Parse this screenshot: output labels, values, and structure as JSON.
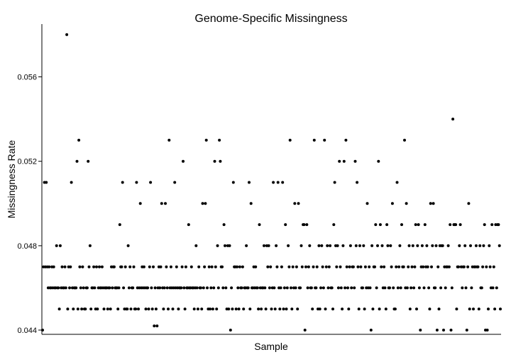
{
  "chart_data": {
    "type": "scatter",
    "title": "Genome-Specific Missingness",
    "xlabel": "Sample",
    "ylabel": "Missingness Rate",
    "xlim": [
      0,
      500
    ],
    "ylim": [
      0.0438,
      0.0585
    ],
    "yticks": [
      0.044,
      0.048,
      0.052,
      0.056
    ],
    "ytick_labels": [
      "0.044",
      "0.048",
      "0.052",
      "0.056"
    ],
    "grid": false,
    "y": [
      0.044,
      0.047,
      0.051,
      0.047,
      0.051,
      0.047,
      0.046,
      0.047,
      0.046,
      0.046,
      0.047,
      0.046,
      0.047,
      0.046,
      0.046,
      0.048,
      0.046,
      0.046,
      0.045,
      0.048,
      0.046,
      0.047,
      0.046,
      0.046,
      0.047,
      0.046,
      0.058,
      0.045,
      0.047,
      0.046,
      0.047,
      0.051,
      0.046,
      0.045,
      0.046,
      0.046,
      0.046,
      0.052,
      0.045,
      0.053,
      0.047,
      0.046,
      0.045,
      0.047,
      0.046,
      0.045,
      0.045,
      0.046,
      0.046,
      0.052,
      0.047,
      0.048,
      0.045,
      0.046,
      0.046,
      0.047,
      0.046,
      0.045,
      0.047,
      0.045,
      0.046,
      0.047,
      0.046,
      0.046,
      0.047,
      0.046,
      0.045,
      0.046,
      0.046,
      0.046,
      0.045,
      0.046,
      0.046,
      0.045,
      0.047,
      0.046,
      0.047,
      0.047,
      0.046,
      0.046,
      0.046,
      0.045,
      0.046,
      0.049,
      0.047,
      0.047,
      0.051,
      0.046,
      0.045,
      0.047,
      0.045,
      0.045,
      0.048,
      0.046,
      0.047,
      0.045,
      0.046,
      0.046,
      0.047,
      0.045,
      0.045,
      0.051,
      0.046,
      0.045,
      0.046,
      0.05,
      0.046,
      0.047,
      0.046,
      0.047,
      0.046,
      0.045,
      0.046,
      0.046,
      0.045,
      0.047,
      0.051,
      0.046,
      0.045,
      0.047,
      0.0442,
      0.046,
      0.045,
      0.0442,
      0.046,
      0.047,
      0.046,
      0.047,
      0.05,
      0.046,
      0.045,
      0.046,
      0.05,
      0.047,
      0.046,
      0.045,
      0.053,
      0.046,
      0.047,
      0.046,
      0.045,
      0.046,
      0.051,
      0.046,
      0.047,
      0.046,
      0.045,
      0.046,
      0.046,
      0.046,
      0.047,
      0.052,
      0.046,
      0.045,
      0.047,
      0.046,
      0.046,
      0.049,
      0.046,
      0.046,
      0.047,
      0.046,
      0.046,
      0.045,
      0.046,
      0.048,
      0.046,
      0.045,
      0.047,
      0.046,
      0.046,
      0.045,
      0.05,
      0.046,
      0.047,
      0.05,
      0.053,
      0.046,
      0.045,
      0.047,
      0.045,
      0.046,
      0.047,
      0.045,
      0.046,
      0.052,
      0.047,
      0.045,
      0.048,
      0.046,
      0.053,
      0.052,
      0.047,
      0.047,
      0.046,
      0.049,
      0.048,
      0.046,
      0.045,
      0.048,
      0.045,
      0.048,
      0.044,
      0.046,
      0.045,
      0.051,
      0.047,
      0.047,
      0.045,
      0.047,
      0.046,
      0.045,
      0.047,
      0.046,
      0.046,
      0.047,
      0.045,
      0.046,
      0.046,
      0.048,
      0.046,
      0.046,
      0.051,
      0.045,
      0.05,
      0.046,
      0.046,
      0.047,
      0.046,
      0.047,
      0.046,
      0.046,
      0.045,
      0.049,
      0.046,
      0.045,
      0.046,
      0.046,
      0.048,
      0.046,
      0.045,
      0.048,
      0.047,
      0.048,
      0.046,
      0.047,
      0.045,
      0.046,
      0.051,
      0.046,
      0.045,
      0.048,
      0.047,
      0.051,
      0.046,
      0.045,
      0.046,
      0.047,
      0.051,
      0.045,
      0.046,
      0.049,
      0.045,
      0.046,
      0.048,
      0.047,
      0.053,
      0.046,
      0.045,
      0.047,
      0.046,
      0.05,
      0.046,
      0.047,
      0.045,
      0.05,
      0.046,
      0.046,
      0.048,
      0.047,
      0.049,
      0.049,
      0.044,
      0.047,
      0.049,
      0.046,
      0.047,
      0.048,
      0.046,
      0.046,
      0.045,
      0.047,
      0.053,
      0.046,
      0.046,
      0.047,
      0.045,
      0.048,
      0.045,
      0.046,
      0.048,
      0.047,
      0.046,
      0.053,
      0.045,
      0.047,
      0.048,
      0.046,
      0.047,
      0.048,
      0.046,
      0.046,
      0.045,
      0.049,
      0.051,
      0.048,
      0.047,
      0.048,
      0.046,
      0.052,
      0.047,
      0.046,
      0.045,
      0.048,
      0.052,
      0.046,
      0.053,
      0.047,
      0.046,
      0.045,
      0.047,
      0.048,
      0.046,
      0.047,
      0.047,
      0.046,
      0.052,
      0.048,
      0.051,
      0.047,
      0.045,
      0.048,
      0.047,
      0.046,
      0.046,
      0.048,
      0.045,
      0.047,
      0.046,
      0.05,
      0.046,
      0.047,
      0.046,
      0.044,
      0.048,
      0.045,
      0.047,
      0.047,
      0.049,
      0.046,
      0.048,
      0.052,
      0.045,
      0.049,
      0.047,
      0.048,
      0.046,
      0.047,
      0.046,
      0.045,
      0.049,
      0.048,
      0.046,
      0.046,
      0.048,
      0.047,
      0.05,
      0.046,
      0.045,
      0.045,
      0.047,
      0.051,
      0.046,
      0.047,
      0.048,
      0.046,
      0.049,
      0.047,
      0.047,
      0.053,
      0.046,
      0.05,
      0.046,
      0.047,
      0.048,
      0.045,
      0.046,
      0.047,
      0.048,
      0.046,
      0.047,
      0.049,
      0.045,
      0.048,
      0.049,
      0.046,
      0.044,
      0.047,
      0.048,
      0.047,
      0.046,
      0.049,
      0.047,
      0.048,
      0.047,
      0.046,
      0.045,
      0.05,
      0.047,
      0.048,
      0.05,
      0.046,
      0.046,
      0.048,
      0.044,
      0.047,
      0.045,
      0.048,
      0.046,
      0.048,
      0.048,
      0.044,
      0.047,
      0.046,
      0.047,
      0.047,
      0.048,
      0.047,
      0.049,
      0.044,
      0.046,
      0.054,
      0.049,
      0.049,
      0.049,
      0.045,
      0.047,
      0.047,
      0.048,
      0.049,
      0.047,
      0.046,
      0.047,
      0.047,
      0.048,
      0.046,
      0.044,
      0.047,
      0.05,
      0.045,
      0.048,
      0.046,
      0.047,
      0.045,
      0.047,
      0.047,
      0.048,
      0.047,
      0.047,
      0.045,
      0.048,
      0.046,
      0.046,
      0.047,
      0.048,
      0.049,
      0.044,
      0.047,
      0.044,
      0.045,
      0.048,
      0.047,
      0.046,
      0.049,
      0.046,
      0.047,
      0.045,
      0.049,
      0.046,
      0.049,
      0.049,
      0.048,
      0.045
    ]
  }
}
